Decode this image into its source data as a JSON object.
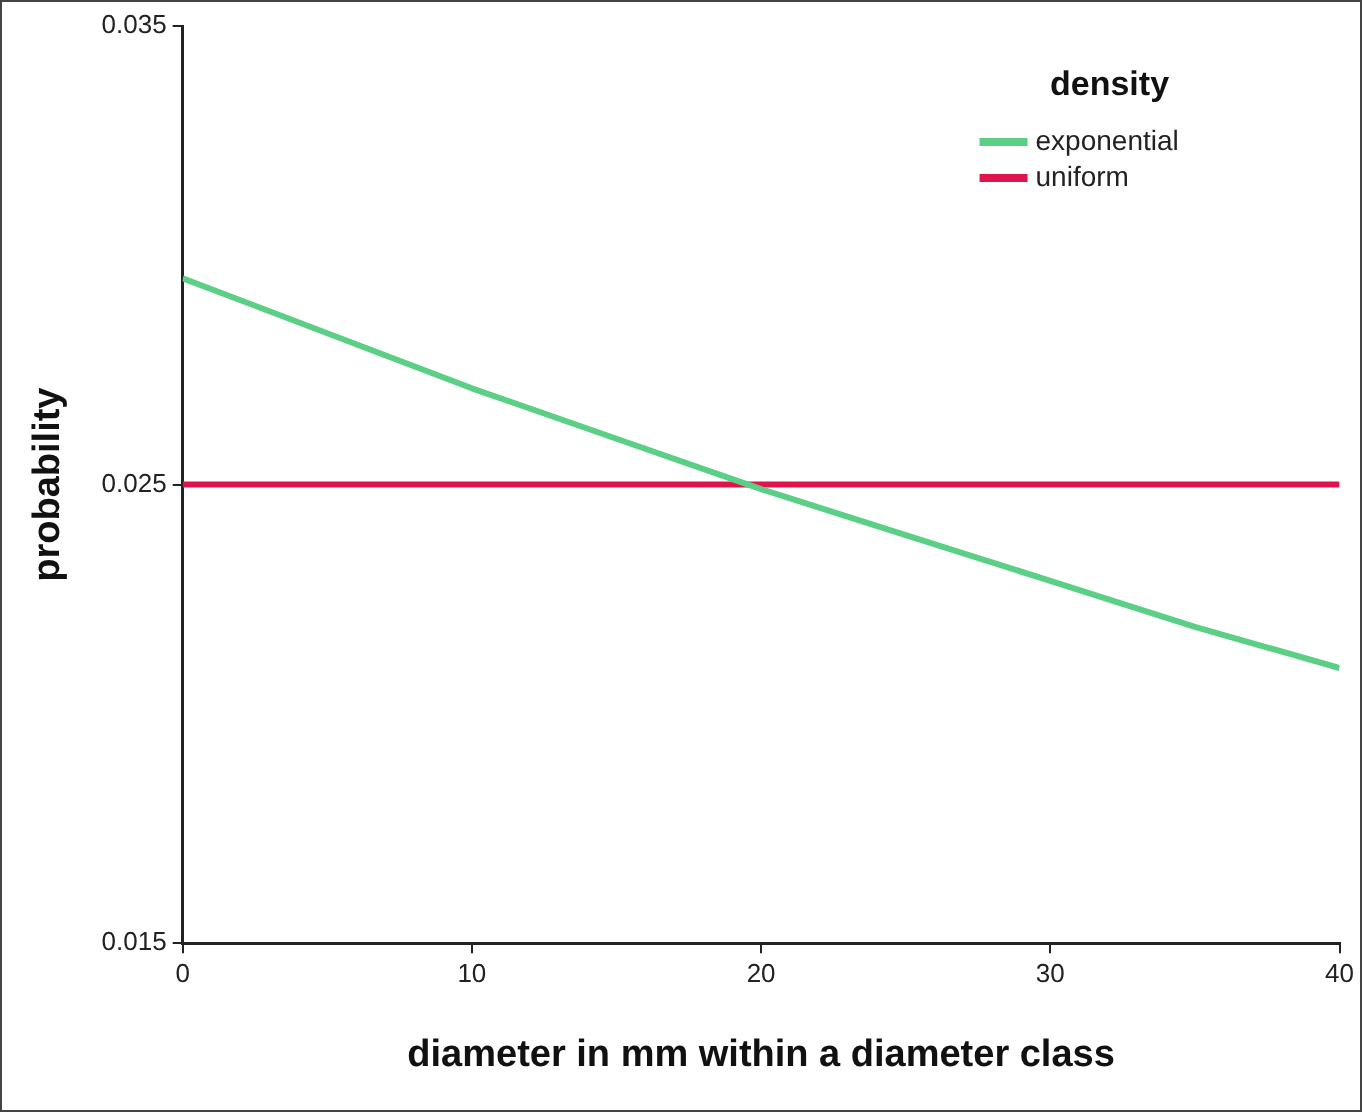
{
  "chart_data": {
    "type": "line",
    "xlabel": "diameter in mm within a diameter class",
    "ylabel": "probability",
    "legend_title": "density",
    "x": [
      0,
      5,
      10,
      15,
      20,
      25,
      30,
      35,
      40
    ],
    "series": [
      {
        "name": "exponential",
        "color": "#5ccf86",
        "values": [
          0.0295,
          0.0283,
          0.0271,
          0.026,
          0.0249,
          0.0239,
          0.0229,
          0.0219,
          0.021
        ]
      },
      {
        "name": "uniform",
        "color": "#e0144c",
        "values": [
          0.025,
          0.025,
          0.025,
          0.025,
          0.025,
          0.025,
          0.025,
          0.025,
          0.025
        ]
      }
    ],
    "xlim": [
      0,
      40
    ],
    "xticks": [
      0,
      10,
      20,
      30,
      40
    ],
    "ylim": [
      0.015,
      0.035
    ],
    "yticks": [
      0.015,
      0.025,
      0.035
    ],
    "grid": false,
    "legend": "top right",
    "marker": "none",
    "line_style": "solid"
  }
}
